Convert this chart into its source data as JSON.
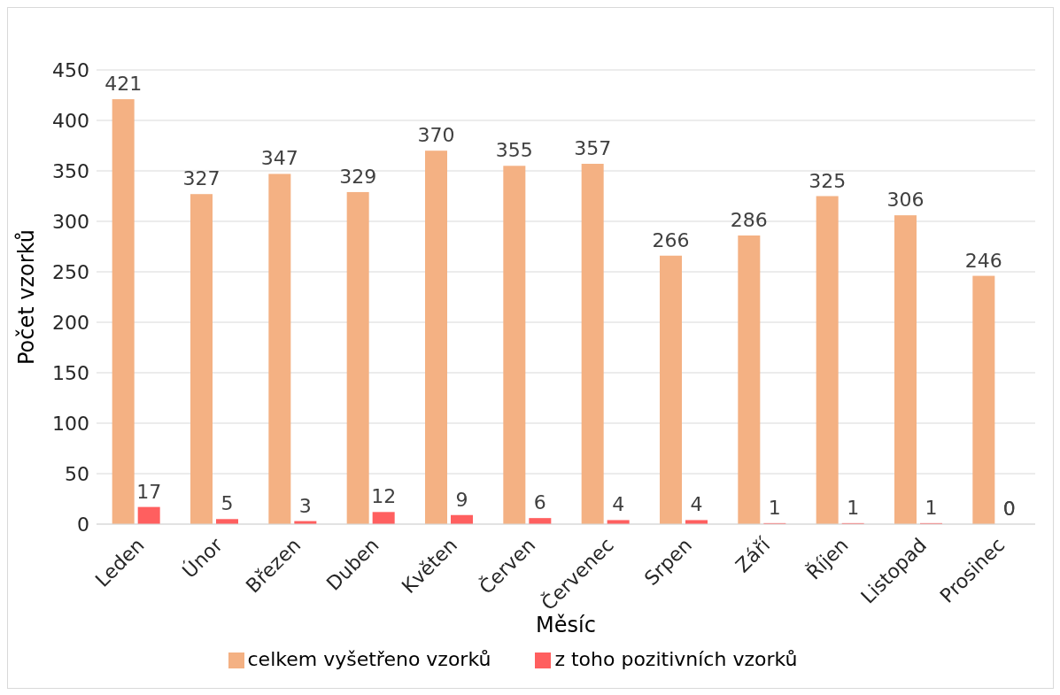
{
  "chart_data": {
    "type": "bar",
    "xlabel": "Měsíc",
    "ylabel": "Počet vzorků",
    "categories": [
      "Leden",
      "Únor",
      "Březen",
      "Duben",
      "Květen",
      "Červen",
      "Červenec",
      "Srpen",
      "Září",
      "Říjen",
      "Listopad",
      "Prosinec"
    ],
    "series": [
      {
        "name": "celkem vyšetřeno vzorků",
        "color": "#f4b183",
        "values": [
          421,
          327,
          347,
          329,
          370,
          355,
          357,
          266,
          286,
          325,
          306,
          246
        ]
      },
      {
        "name": "z toho pozitivních vzorků",
        "color": "#ff5f5f",
        "values": [
          17,
          5,
          3,
          12,
          9,
          6,
          4,
          4,
          1,
          1,
          1,
          0
        ]
      }
    ],
    "ylim": [
      0,
      450
    ],
    "yticks": [
      0,
      50,
      100,
      150,
      200,
      250,
      300,
      350,
      400,
      450
    ],
    "grid": "y",
    "legend": "bottom",
    "data_labels": true
  }
}
